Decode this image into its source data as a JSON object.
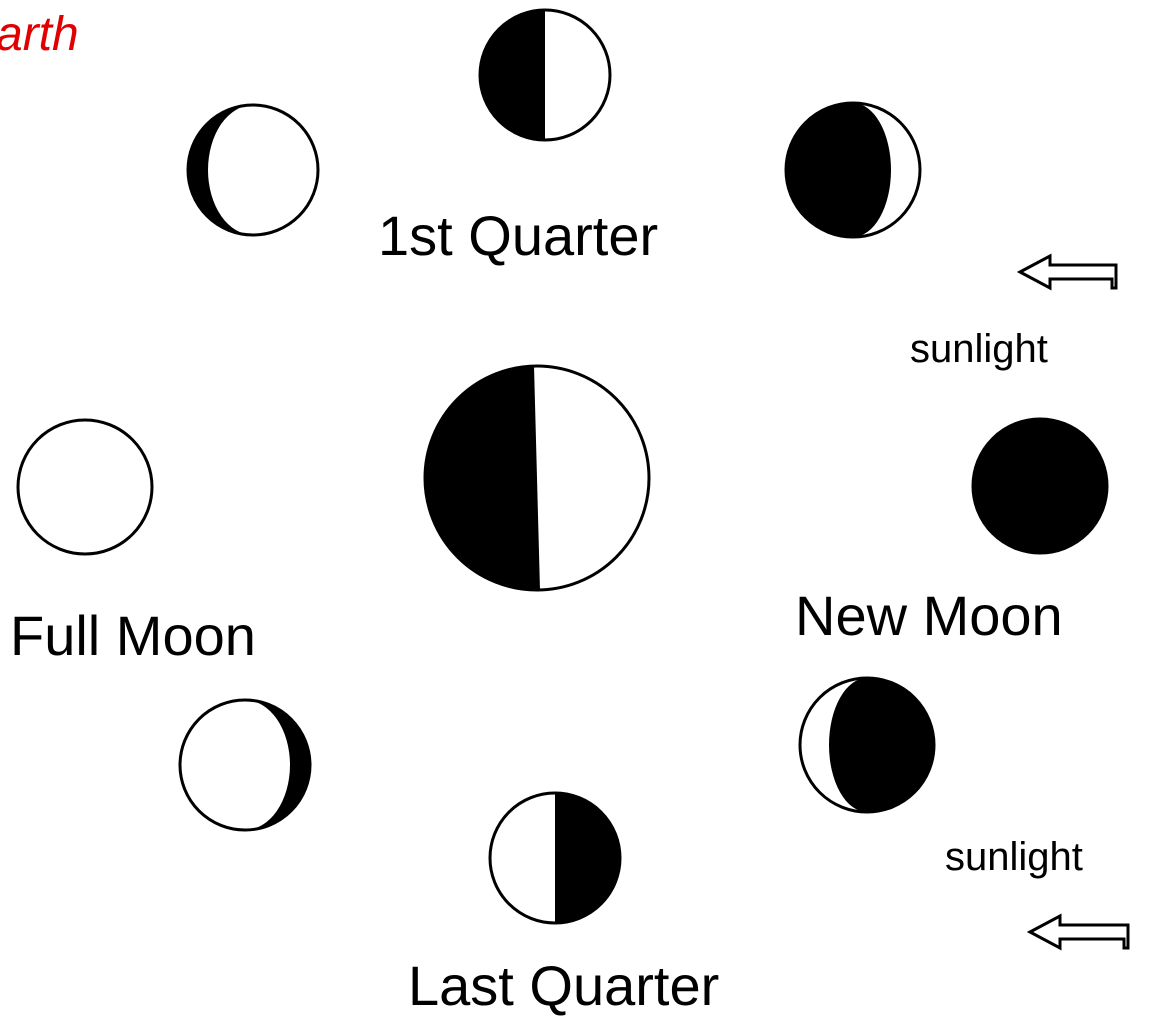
{
  "title": "arth",
  "labels": {
    "first_quarter": "1st Quarter",
    "sunlight_top": "sunlight",
    "full_moon": "Full Moon",
    "new_moon": "New Moon",
    "sunlight_bottom": "sunlight",
    "last_quarter": "Last Quarter"
  }
}
